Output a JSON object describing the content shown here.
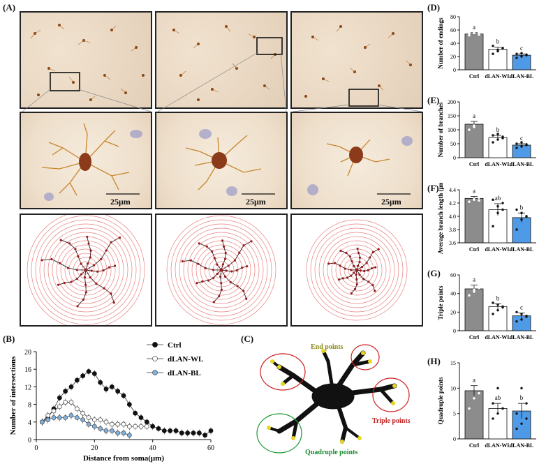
{
  "panel_labels": {
    "A": "(A)",
    "B": "(B)",
    "C": "(C)",
    "D": "(D)",
    "E": "(E)",
    "F": "(F)",
    "G": "(G)",
    "H": "(H)"
  },
  "scale_bar_label": "25μm",
  "colors": {
    "ctrl": "#8c8c8c",
    "wl": "#ffffff",
    "bl": "#4f9ae6",
    "ring": "#e88080",
    "soma": "#8b3a1a",
    "branch": "#c8852c"
  },
  "diagram_C": {
    "end_points_label": "End points",
    "triple_points_label": "Triple points",
    "quadruple_points_label": "Quadruple points"
  },
  "chart_data": [
    {
      "id": "B",
      "type": "line",
      "xlabel": "Distance from soma(μm)",
      "ylabel": "Number of intersections",
      "xlim": [
        0,
        60
      ],
      "ylim": [
        0,
        20
      ],
      "xticks": [
        0,
        20,
        40,
        60
      ],
      "yticks": [
        0,
        4,
        8,
        12,
        16,
        20
      ],
      "series": [
        {
          "name": "Ctrl",
          "x": [
            2,
            4,
            6,
            8,
            10,
            12,
            14,
            16,
            18,
            20,
            22,
            24,
            26,
            28,
            30,
            32,
            34,
            36,
            38,
            40,
            42,
            44,
            46,
            48,
            50,
            52,
            54,
            56,
            58,
            60
          ],
          "values": [
            4,
            5,
            7,
            9.5,
            11,
            12,
            13.5,
            14.5,
            15.5,
            15,
            13,
            11.5,
            12,
            11,
            10,
            8,
            6,
            5,
            4,
            3,
            2.5,
            2,
            2,
            2,
            1.5,
            1.5,
            1.5,
            1.5,
            1,
            2
          ]
        },
        {
          "name": "dLAN-WL",
          "x": [
            2,
            4,
            6,
            8,
            10,
            12,
            14,
            16,
            18,
            20,
            22,
            24,
            26,
            28,
            30,
            32,
            34,
            36,
            38
          ],
          "values": [
            4,
            5.5,
            6.5,
            7.5,
            8.5,
            8.5,
            7,
            6,
            5,
            4.5,
            4.5,
            4,
            3.5,
            3.5,
            3.5,
            3,
            3,
            3,
            3
          ]
        },
        {
          "name": "dLAN-BL",
          "x": [
            2,
            4,
            6,
            8,
            10,
            12,
            14,
            16,
            18,
            20,
            22,
            24,
            26,
            28,
            30,
            32
          ],
          "values": [
            4,
            4.5,
            5,
            5,
            5,
            5.5,
            5,
            4.5,
            3.5,
            3,
            2.5,
            2,
            2,
            1.5,
            1.5,
            1
          ]
        }
      ]
    },
    {
      "id": "D",
      "type": "bar",
      "ylabel": "Number of endings",
      "categories": [
        "Ctrl",
        "dLAN-WL",
        "dLAN-BL"
      ],
      "values": [
        54,
        31,
        22
      ],
      "errors": [
        2,
        3,
        2
      ],
      "ylim": [
        0,
        80
      ],
      "yticks": [
        0,
        20,
        40,
        60,
        80
      ],
      "letters": [
        "a",
        "b",
        "c"
      ],
      "points": [
        [
          52,
          55,
          57,
          54,
          56,
          53
        ],
        [
          24,
          28,
          33,
          36,
          30,
          32
        ],
        [
          18,
          20,
          22,
          24,
          25,
          23
        ]
      ]
    },
    {
      "id": "E",
      "type": "bar",
      "ylabel": "Number of branches",
      "categories": [
        "Ctrl",
        "dLAN-WL",
        "dLAN-BL"
      ],
      "values": [
        120,
        72,
        45
      ],
      "errors": [
        10,
        8,
        5
      ],
      "ylim": [
        0,
        200
      ],
      "yticks": [
        0,
        50,
        100,
        150,
        200
      ],
      "letters": [
        "a",
        "b",
        "c"
      ],
      "points": [
        [
          100,
          115,
          125,
          140,
          110,
          130
        ],
        [
          55,
          65,
          70,
          80,
          85,
          75
        ],
        [
          35,
          40,
          45,
          50,
          55,
          48
        ]
      ]
    },
    {
      "id": "F",
      "type": "bar",
      "ylabel": "Average branch length (μm)",
      "categories": [
        "Ctrl",
        "dLAN-WL",
        "dLAN-BL"
      ],
      "values": [
        4.27,
        4.1,
        3.98
      ],
      "errors": [
        0.03,
        0.09,
        0.07
      ],
      "ylim": [
        3.6,
        4.4
      ],
      "yticks": [
        3.6,
        3.8,
        4.0,
        4.2,
        4.4
      ],
      "letters": [
        "a",
        "ab",
        "b"
      ],
      "points": [
        [
          4.22,
          4.25,
          4.28,
          4.3,
          4.26,
          4.24
        ],
        [
          3.85,
          4.05,
          4.2,
          4.25,
          4.15,
          4.1
        ],
        [
          3.8,
          3.95,
          4.0,
          4.1,
          4.05,
          4.0
        ]
      ]
    },
    {
      "id": "G",
      "type": "bar",
      "ylabel": "Triple points",
      "categories": [
        "Ctrl",
        "dLAN-WL",
        "dLAN-BL"
      ],
      "values": [
        45,
        26,
        16
      ],
      "errors": [
        4,
        3,
        3
      ],
      "ylim": [
        0,
        60
      ],
      "yticks": [
        0,
        20,
        40,
        60
      ],
      "letters": [
        "a",
        "b",
        "c"
      ],
      "points": [
        [
          38,
          42,
          48,
          52,
          44,
          46
        ],
        [
          18,
          22,
          26,
          30,
          28,
          25
        ],
        [
          10,
          12,
          15,
          20,
          18,
          16
        ]
      ]
    },
    {
      "id": "H",
      "type": "bar",
      "ylabel": "Quadruple points",
      "categories": [
        "Ctrl",
        "dLAN-WL",
        "dLAN-BL"
      ],
      "values": [
        9.5,
        6,
        5.5
      ],
      "errors": [
        1,
        1,
        1.5
      ],
      "ylim": [
        0,
        15
      ],
      "yticks": [
        0,
        5,
        10,
        15
      ],
      "letters": [
        "a",
        "ab",
        "b"
      ],
      "points": [
        [
          6,
          8,
          10,
          11,
          12,
          9
        ],
        [
          4,
          5,
          6,
          7,
          10,
          6
        ],
        [
          2,
          3,
          4,
          5,
          10,
          7
        ]
      ]
    }
  ]
}
